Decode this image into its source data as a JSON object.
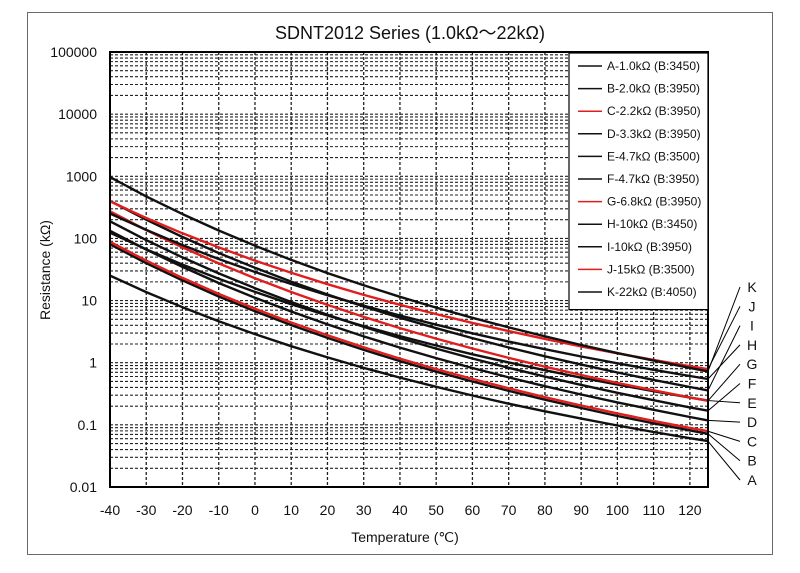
{
  "chart_data": {
    "type": "line",
    "title": "SDNT2012 Series (1.0kΩ～22kΩ)",
    "xlabel": "Temperature (℃)",
    "ylabel": "Resistance (kΩ)",
    "yscale": "log",
    "xlim": [
      -40,
      125
    ],
    "ylim": [
      0.01,
      100000
    ],
    "xticks": [
      "-40",
      "-30",
      "-20",
      "-10",
      "0",
      "10",
      "20",
      "30",
      "40",
      "50",
      "60",
      "70",
      "80",
      "90",
      "100",
      "110",
      "120"
    ],
    "xtick_values": [
      -40,
      -30,
      -20,
      -10,
      0,
      10,
      20,
      30,
      40,
      50,
      60,
      70,
      80,
      90,
      100,
      110,
      120
    ],
    "yticks": [
      "100000",
      "10000",
      "1000",
      "100",
      "10",
      "1",
      "0.1",
      "0.01"
    ],
    "ytick_values": [
      100000,
      10000,
      1000,
      100,
      10,
      1,
      0.1,
      0.01
    ],
    "grid": true,
    "legend_position": "top-right",
    "x": [
      -40,
      -30,
      -20,
      -10,
      0,
      10,
      20,
      30,
      40,
      50,
      60,
      70,
      80,
      90,
      100,
      110,
      120,
      125
    ],
    "series": [
      {
        "key": "A",
        "name": "A-1.0kΩ (B:3450)",
        "color": "#111111",
        "values": [
          25.18,
          13.71,
          7.82,
          4.66,
          2.884,
          1.846,
          1.218,
          0.826,
          0.575,
          0.409,
          0.297,
          0.219,
          0.165,
          0.126,
          0.0977,
          0.0768,
          0.0611,
          0.0547
        ]
      },
      {
        "key": "B",
        "name": "B-2.0kΩ (B:3950)",
        "color": "#111111",
        "values": [
          80.4,
          40.0,
          21.08,
          11.64,
          6.724,
          4.036,
          2.508,
          1.608,
          1.06,
          0.718,
          0.498,
          0.352,
          0.254,
          0.187,
          0.139,
          0.106,
          0.0814,
          0.0718
        ]
      },
      {
        "key": "C",
        "name": "C-2.2kΩ (B:3950)",
        "color": "#e01e1e",
        "values": [
          88.4,
          44.0,
          23.19,
          12.8,
          7.396,
          4.44,
          2.759,
          1.769,
          1.166,
          0.79,
          0.548,
          0.387,
          0.279,
          0.205,
          0.153,
          0.116,
          0.0895,
          0.079
        ]
      },
      {
        "key": "D",
        "name": "D-3.3kΩ (B:3950)",
        "color": "#111111",
        "values": [
          132.7,
          66.0,
          34.78,
          19.21,
          11.09,
          6.659,
          4.138,
          2.653,
          1.749,
          1.185,
          0.822,
          0.581,
          0.419,
          0.308,
          0.23,
          0.175,
          0.134,
          0.118
        ]
      },
      {
        "key": "E",
        "name": "E-4.7kΩ (B:3500)",
        "color": "#111111",
        "values": [
          124.0,
          66.9,
          37.9,
          22.4,
          13.77,
          8.756,
          5.743,
          3.873,
          2.679,
          1.894,
          1.368,
          1.011,
          0.757,
          0.573,
          0.444,
          0.348,
          0.275,
          0.246
        ]
      },
      {
        "key": "F",
        "name": "F-4.7kΩ (B:3950)",
        "color": "#111111",
        "values": [
          188.9,
          94.0,
          49.54,
          27.35,
          15.8,
          9.485,
          5.894,
          3.779,
          2.491,
          1.687,
          1.17,
          0.827,
          0.597,
          0.439,
          0.328,
          0.249,
          0.191,
          0.169
        ]
      },
      {
        "key": "G",
        "name": "G-6.8kΩ (B:3950)",
        "color": "#e01e1e",
        "values": [
          273.4,
          136.0,
          71.67,
          39.58,
          22.86,
          13.72,
          8.527,
          5.467,
          3.604,
          2.441,
          1.693,
          1.197,
          0.864,
          0.635,
          0.474,
          0.36,
          0.277,
          0.244
        ]
      },
      {
        "key": "H",
        "name": "H-10kΩ (B:3450)",
        "color": "#111111",
        "values": [
          251.8,
          137.1,
          78.2,
          46.6,
          28.84,
          18.46,
          12.18,
          8.26,
          5.75,
          4.09,
          2.97,
          2.19,
          1.65,
          1.26,
          0.977,
          0.768,
          0.611,
          0.547
        ]
      },
      {
        "key": "I",
        "name": "I-10kΩ (B:3950)",
        "color": "#111111",
        "values": [
          402,
          200,
          105.4,
          58.2,
          33.62,
          20.18,
          12.54,
          8.04,
          5.3,
          3.59,
          2.49,
          1.76,
          1.27,
          0.934,
          0.697,
          0.529,
          0.407,
          0.359
        ]
      },
      {
        "key": "J",
        "name": "J-15kΩ (B:3500)",
        "color": "#e01e1e",
        "values": [
          395.9,
          213.5,
          120.9,
          71.6,
          43.94,
          27.95,
          18.33,
          12.36,
          8.55,
          6.05,
          4.37,
          3.23,
          2.42,
          1.83,
          1.42,
          1.11,
          0.879,
          0.786
        ]
      },
      {
        "key": "K",
        "name": "K-22kΩ (B:4050)",
        "color": "#111111",
        "values": [
          970,
          475,
          246,
          134,
          76.3,
          45.2,
          27.7,
          17.6,
          11.5,
          7.7,
          5.28,
          3.7,
          2.66,
          1.93,
          1.43,
          1.08,
          0.825,
          0.726
        ]
      }
    ],
    "end_labels": [
      "K",
      "J",
      "I",
      "H",
      "G",
      "F",
      "E",
      "D",
      "C",
      "B",
      "A"
    ]
  }
}
